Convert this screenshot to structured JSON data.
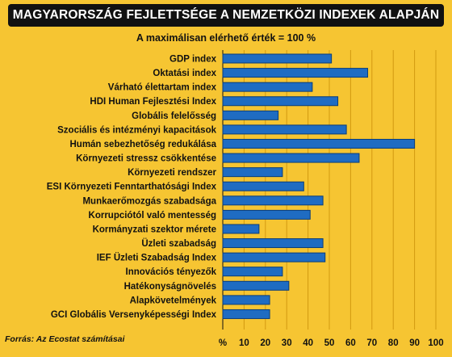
{
  "title": "MAGYARORSZÁG FEJLETTSÉGE A NEMZETKÖZI INDEXEK ALAPJÁN",
  "subtitle": "A maximálisan elérhető érték = 100 %",
  "source": "Forrás: Az Ecostat számításai",
  "colors": {
    "background": "#f6c532",
    "bar": "#1f6cc2",
    "bar_edge": "#0a3d7a",
    "title_bg": "#111111",
    "grid": "#d39a10"
  },
  "chart_data": {
    "type": "bar",
    "orientation": "horizontal",
    "categories": [
      "GDP index",
      "Oktatási index",
      "Várható élettartam index",
      "HDI Human Fejlesztési Index",
      "Globális felelősség",
      "Szociális és intézményi kapacitások",
      "Humán sebezhetőség redukálása",
      "Környezeti stressz csökkentése",
      "Környezeti rendszer",
      "ESI Környezeti Fenntarthatósági Index",
      "Munkaerőmozgás szabadsága",
      "Korrupciótól való mentesség",
      "Kormányzati szektor mérete",
      "Üzleti szabadság",
      "IEF Üzleti Szabadság Index",
      "Innovációs tényezők",
      "Hatékonyságnövelés",
      "Alapkövetelmények",
      "GCI Globális Versenyképességi Index"
    ],
    "values": [
      51,
      68,
      42,
      54,
      26,
      58,
      90,
      64,
      28,
      38,
      47,
      41,
      17,
      47,
      48,
      28,
      31,
      22,
      22
    ],
    "x_unit": "%",
    "xlim": [
      0,
      100
    ],
    "xticks": [
      10,
      20,
      30,
      40,
      50,
      60,
      70,
      80,
      90,
      100
    ],
    "grid": true
  }
}
